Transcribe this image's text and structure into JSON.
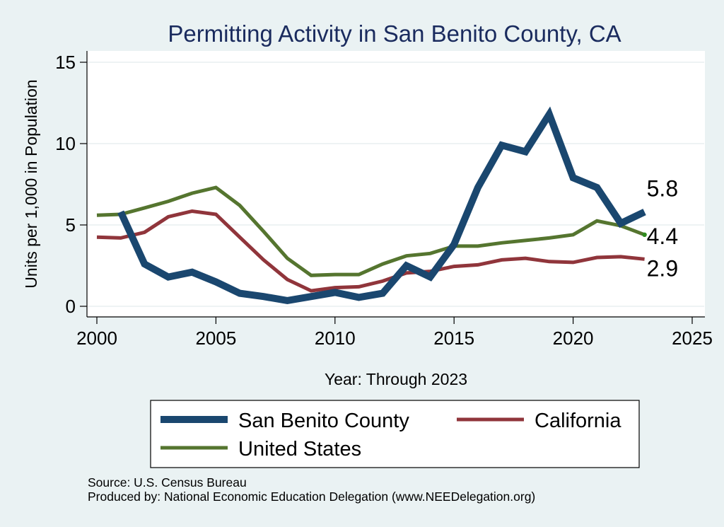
{
  "chart_data": {
    "type": "line",
    "title": "Permitting Activity in San Benito County, CA",
    "xlabel": "Year: Through 2023",
    "ylabel": "Units per 1,000 in Population",
    "xlim": [
      2000,
      2025
    ],
    "ylim": [
      0,
      15
    ],
    "xticks": [
      2000,
      2005,
      2010,
      2015,
      2020,
      2025
    ],
    "yticks": [
      0,
      5,
      10,
      15
    ],
    "grid": true,
    "series": [
      {
        "name": "San Benito County",
        "color": "#1a476f",
        "x": [
          2001,
          2002,
          2003,
          2004,
          2005,
          2006,
          2007,
          2008,
          2009,
          2010,
          2011,
          2012,
          2013,
          2014,
          2015,
          2016,
          2017,
          2018,
          2019,
          2020,
          2021,
          2022,
          2023
        ],
        "values": [
          5.8,
          2.6,
          1.8,
          2.1,
          1.5,
          0.8,
          0.6,
          0.35,
          0.6,
          0.85,
          0.55,
          0.8,
          2.5,
          1.8,
          3.8,
          7.3,
          9.9,
          9.5,
          11.8,
          7.9,
          7.3,
          5.1,
          5.8
        ],
        "end_label": "5.8"
      },
      {
        "name": "California",
        "color": "#90353b",
        "x": [
          2000,
          2001,
          2002,
          2003,
          2004,
          2005,
          2006,
          2007,
          2008,
          2009,
          2010,
          2011,
          2012,
          2013,
          2014,
          2015,
          2016,
          2017,
          2018,
          2019,
          2020,
          2021,
          2022,
          2023
        ],
        "values": [
          4.25,
          4.2,
          4.55,
          5.5,
          5.85,
          5.65,
          4.25,
          2.85,
          1.65,
          0.95,
          1.15,
          1.2,
          1.55,
          2.05,
          2.15,
          2.45,
          2.55,
          2.85,
          2.95,
          2.75,
          2.7,
          3.0,
          3.05,
          2.9
        ],
        "end_label": "2.9"
      },
      {
        "name": "United States",
        "color": "#55752f",
        "x": [
          2000,
          2001,
          2002,
          2003,
          2004,
          2005,
          2006,
          2007,
          2008,
          2009,
          2010,
          2011,
          2012,
          2013,
          2014,
          2015,
          2016,
          2017,
          2018,
          2019,
          2020,
          2021,
          2022,
          2023
        ],
        "values": [
          5.6,
          5.65,
          6.05,
          6.45,
          6.95,
          7.3,
          6.2,
          4.6,
          2.95,
          1.9,
          1.95,
          1.95,
          2.6,
          3.1,
          3.25,
          3.7,
          3.7,
          3.9,
          4.05,
          4.2,
          4.4,
          5.25,
          4.95,
          4.4
        ],
        "end_label": "4.4"
      }
    ],
    "legend": {
      "placement": "bottom",
      "entries": [
        "San Benito County",
        "California",
        "United States"
      ]
    },
    "notes": [
      "Source: U.S. Census Bureau",
      "Produced by: National Economic Education Delegation (www.NEEDelegation.org)"
    ]
  },
  "colors": {
    "background": "#eaf2f3",
    "plot_background": "#ffffff",
    "title": "#1a2b5e"
  }
}
